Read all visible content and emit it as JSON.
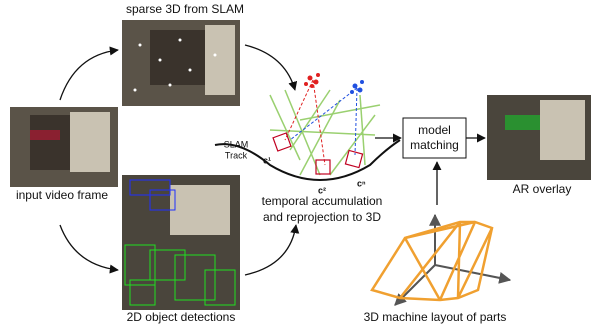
{
  "labels": {
    "sparse": "sparse 3D from SLAM",
    "input": "input video frame",
    "detections": "2D object detections",
    "slam_track": [
      "SLAM",
      "Track"
    ],
    "cameras": [
      "c¹",
      "c²",
      "cⁿ"
    ],
    "temporal": [
      "temporal accumulation",
      "and reprojection to 3D"
    ],
    "model_matching": [
      "model",
      "matching"
    ],
    "ar_overlay": "AR overlay",
    "layout": "3D machine layout of parts"
  }
}
